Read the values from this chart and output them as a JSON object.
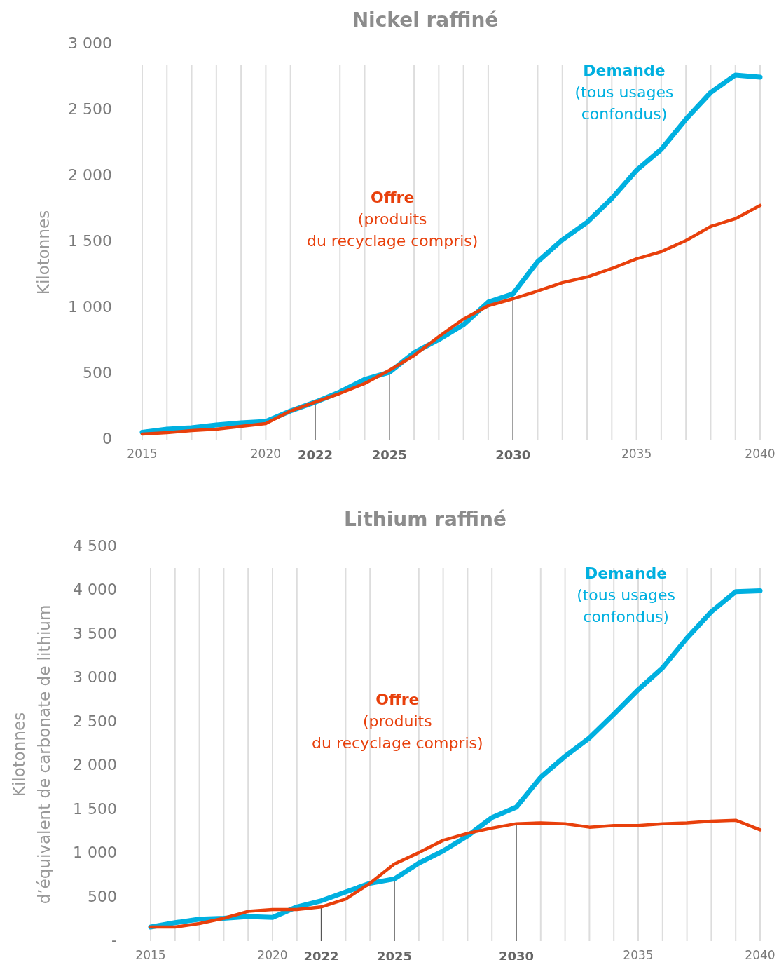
{
  "chart_data": [
    {
      "type": "line",
      "title": "Nickel raffiné",
      "ylabel": "Kilotonnes",
      "x": [
        2015,
        2016,
        2017,
        2018,
        2019,
        2020,
        2021,
        2022,
        2023,
        2024,
        2025,
        2026,
        2027,
        2028,
        2029,
        2030,
        2031,
        2032,
        2033,
        2034,
        2035,
        2036,
        2037,
        2038,
        2039,
        2040
      ],
      "series": [
        {
          "name": "Demande\n(tous usages\nconfondus)",
          "color": "#00b0e0",
          "values": [
            56,
            80,
            90,
            112,
            128,
            138,
            218,
            285,
            362,
            457,
            511,
            660,
            760,
            872,
            1043,
            1106,
            1351,
            1516,
            1649,
            1830,
            2043,
            2202,
            2431,
            2633,
            2766,
            2750
          ]
        },
        {
          "name": "Offre\n(produits\ndu recyclage compris)",
          "color": "#e8400c",
          "values": [
            43,
            53,
            69,
            80,
            101,
            122,
            218,
            285,
            351,
            426,
            527,
            638,
            782,
            915,
            1016,
            1069,
            1128,
            1191,
            1234,
            1298,
            1372,
            1426,
            1511,
            1617,
            1676,
            1777
          ]
        }
      ],
      "xlim": [
        2015,
        2040
      ],
      "xticks": [
        2015,
        {
          "value": 2016,
          "label": null
        },
        {
          "value": 2017,
          "label": null
        },
        {
          "value": 2018,
          "label": null
        },
        {
          "value": 2019,
          "label": null
        },
        2020,
        {
          "value": 2021,
          "label": null
        },
        2022,
        {
          "value": 2023,
          "label": null
        },
        {
          "value": 2024,
          "label": null
        },
        2025,
        {
          "value": 2026,
          "label": null
        },
        {
          "value": 2027,
          "label": null
        },
        {
          "value": 2028,
          "label": null
        },
        {
          "value": 2029,
          "label": null
        },
        2030,
        {
          "value": 2031,
          "label": null
        },
        {
          "value": 2032,
          "label": null
        },
        {
          "value": 2033,
          "label": null
        },
        {
          "value": 2034,
          "label": null
        },
        2035,
        {
          "value": 2036,
          "label": null
        },
        {
          "value": 2037,
          "label": null
        },
        {
          "value": 2038,
          "label": null
        },
        {
          "value": 2039,
          "label": null
        },
        2040
      ],
      "ylim": [
        0,
        3000
      ],
      "yticks": [
        {
          "value": 0,
          "label": "0"
        },
        500,
        {
          "value": 1000,
          "label": "1 000"
        },
        {
          "value": 1500,
          "label": "1 500"
        },
        {
          "value": 2000,
          "label": "2 000"
        },
        {
          "value": 2500,
          "label": "2 500"
        },
        {
          "value": 3000,
          "label": "3 000"
        }
      ],
      "ref_lines": [
        {
          "axis": "x",
          "value": 2022,
          "color": "#555555"
        },
        {
          "axis": "x",
          "value": 2025,
          "color": "#555555"
        },
        {
          "axis": "x",
          "value": 2030,
          "color": "#555555"
        }
      ],
      "grid": "x",
      "marker": "none",
      "line_style": "solid"
    },
    {
      "type": "line",
      "title": "Lithium raffiné",
      "ylabel": "Kilotonnes\nd’équivalent de carbonate de lithium",
      "x": [
        2015,
        2016,
        2017,
        2018,
        2019,
        2020,
        2021,
        2022,
        2023,
        2024,
        2025,
        2026,
        2027,
        2028,
        2029,
        2030,
        2031,
        2032,
        2033,
        2034,
        2035,
        2036,
        2037,
        2038,
        2039,
        2040
      ],
      "series": [
        {
          "name": "Demande\n(tous usages\nconfondus)",
          "color": "#00b0e0",
          "values": [
            160,
            210,
            250,
            260,
            280,
            270,
            390,
            460,
            560,
            660,
            710,
            890,
            1030,
            1200,
            1410,
            1530,
            1870,
            2110,
            2320,
            2590,
            2870,
            3120,
            3460,
            3760,
            3990,
            4000
          ]
        },
        {
          "name": "Offre\n(produits\ndu recyclage compris)",
          "color": "#e8400c",
          "values": [
            160,
            160,
            200,
            260,
            340,
            360,
            360,
            390,
            480,
            660,
            880,
            1010,
            1150,
            1230,
            1290,
            1340,
            1350,
            1340,
            1300,
            1320,
            1320,
            1340,
            1350,
            1370,
            1380,
            1270
          ]
        }
      ],
      "xlim": [
        2015,
        2040
      ],
      "xticks": [
        2015,
        {
          "value": 2016,
          "label": null
        },
        {
          "value": 2017,
          "label": null
        },
        {
          "value": 2018,
          "label": null
        },
        {
          "value": 2019,
          "label": null
        },
        2020,
        {
          "value": 2021,
          "label": null
        },
        2022,
        {
          "value": 2023,
          "label": null
        },
        {
          "value": 2024,
          "label": null
        },
        2025,
        {
          "value": 2026,
          "label": null
        },
        {
          "value": 2027,
          "label": null
        },
        {
          "value": 2028,
          "label": null
        },
        {
          "value": 2029,
          "label": null
        },
        2030,
        {
          "value": 2031,
          "label": null
        },
        {
          "value": 2032,
          "label": null
        },
        {
          "value": 2033,
          "label": null
        },
        {
          "value": 2034,
          "label": null
        },
        2035,
        {
          "value": 2036,
          "label": null
        },
        {
          "value": 2037,
          "label": null
        },
        {
          "value": 2038,
          "label": null
        },
        {
          "value": 2039,
          "label": null
        },
        2040
      ],
      "ylim": [
        0,
        4500
      ],
      "yticks": [
        {
          "value": 0,
          "label": "-"
        },
        500,
        {
          "value": 1000,
          "label": "1 000"
        },
        {
          "value": 1500,
          "label": "1 500"
        },
        {
          "value": 2000,
          "label": "2 000"
        },
        {
          "value": 2500,
          "label": "2 500"
        },
        {
          "value": 3000,
          "label": "3 000"
        },
        {
          "value": 3500,
          "label": "3 500"
        },
        {
          "value": 4000,
          "label": "4 000"
        },
        {
          "value": 4500,
          "label": "4 500"
        }
      ],
      "ref_lines": [
        {
          "axis": "x",
          "value": 2022,
          "color": "#555555"
        },
        {
          "axis": "x",
          "value": 2025,
          "color": "#555555"
        },
        {
          "axis": "x",
          "value": 2030,
          "color": "#555555"
        }
      ],
      "grid": "x",
      "marker": "none",
      "line_style": "solid"
    }
  ]
}
